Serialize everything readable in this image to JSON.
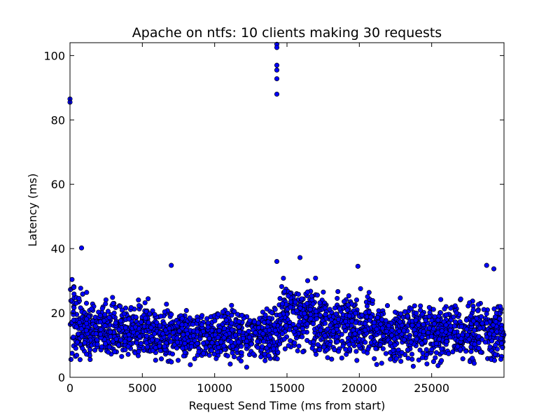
{
  "chart_data": {
    "type": "scatter",
    "title": "Apache on ntfs: 10 clients making 30 requests",
    "xlabel": "Request Send Time (ms from start)",
    "ylabel": "Latency (ms)",
    "xlim": [
      0,
      30000
    ],
    "ylim": [
      0,
      104
    ],
    "xticks": [
      0,
      5000,
      10000,
      15000,
      20000,
      25000
    ],
    "yticks": [
      0,
      20,
      40,
      60,
      80,
      100
    ],
    "grid": false,
    "marker_color": "#0000ff",
    "marker_edge_color": "#000000",
    "notable_points": [
      {
        "x": 0,
        "y": 86.5
      },
      {
        "x": 0,
        "y": 85.5
      },
      {
        "x": 800,
        "y": 40.2
      },
      {
        "x": 7000,
        "y": 34.8
      },
      {
        "x": 14300,
        "y": 103.5
      },
      {
        "x": 14300,
        "y": 102.5
      },
      {
        "x": 14300,
        "y": 97
      },
      {
        "x": 14300,
        "y": 95.5
      },
      {
        "x": 14300,
        "y": 92.8
      },
      {
        "x": 14300,
        "y": 88
      },
      {
        "x": 14300,
        "y": 36
      },
      {
        "x": 15900,
        "y": 37.2
      },
      {
        "x": 19900,
        "y": 34.5
      },
      {
        "x": 28800,
        "y": 34.8
      },
      {
        "x": 29300,
        "y": 33.7
      }
    ],
    "bulk_bands": [
      {
        "x_start": 0,
        "x_end": 1000,
        "y_min": 0,
        "y_max": 33
      },
      {
        "x_start": 1000,
        "x_end": 5500,
        "y_min": 2,
        "y_max": 27
      },
      {
        "x_start": 5500,
        "x_end": 14500,
        "y_min": 2,
        "y_max": 24
      },
      {
        "x_start": 14500,
        "x_end": 17000,
        "y_min": 5,
        "y_max": 33
      },
      {
        "x_start": 17000,
        "x_end": 21000,
        "y_min": 3,
        "y_max": 29
      },
      {
        "x_start": 21000,
        "x_end": 30000,
        "y_min": 2,
        "y_max": 26
      }
    ]
  }
}
